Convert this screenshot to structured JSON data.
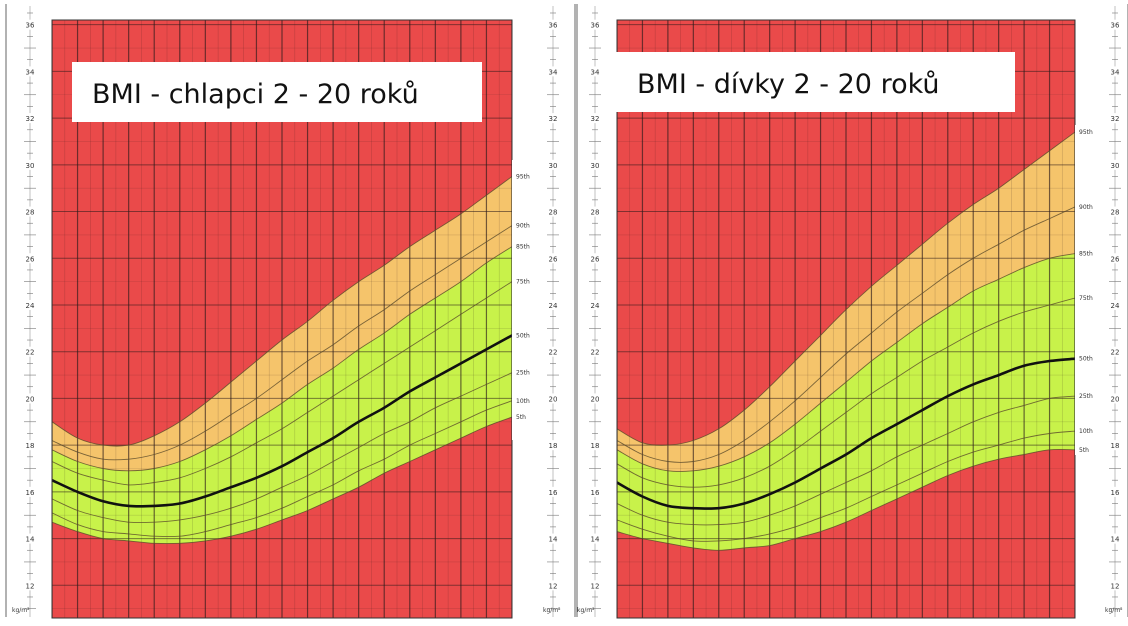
{
  "colors": {
    "red": "#ea4a4a",
    "orange": "#f5c46b",
    "green": "#c8f24a",
    "grid": "#2a1a1a",
    "median": "#111111",
    "percentile_line": "#5a4a2a"
  },
  "chart_data": [
    {
      "type": "area",
      "title": "BMI - chlapci 2 - 20 roků",
      "ylabel": "kg/m²",
      "xlim": [
        2,
        20
      ],
      "ylim": [
        10.6,
        36.2
      ],
      "y_ticks": [
        "36",
        "34",
        "32",
        "30",
        "28",
        "26",
        "24",
        "22",
        "20",
        "18",
        "16",
        "14",
        "12"
      ],
      "y_tick_values": [
        36,
        34,
        32,
        30,
        28,
        26,
        24,
        22,
        20,
        18,
        16,
        14,
        12
      ],
      "unit_label": "kg/m²",
      "x": [
        2,
        3,
        4,
        5,
        6,
        7,
        8,
        9,
        10,
        11,
        12,
        13,
        14,
        15,
        16,
        17,
        18,
        19,
        20
      ],
      "series": [
        {
          "name": "5th",
          "values": [
            14.7,
            14.3,
            14.0,
            13.9,
            13.8,
            13.8,
            13.9,
            14.1,
            14.4,
            14.8,
            15.2,
            15.7,
            16.2,
            16.8,
            17.3,
            17.8,
            18.3,
            18.8,
            19.2
          ]
        },
        {
          "name": "10th",
          "values": [
            15.1,
            14.6,
            14.3,
            14.2,
            14.1,
            14.1,
            14.3,
            14.6,
            14.9,
            15.3,
            15.8,
            16.3,
            16.9,
            17.4,
            18.0,
            18.5,
            19.0,
            19.5,
            19.9
          ]
        },
        {
          "name": "25th",
          "values": [
            15.7,
            15.2,
            14.9,
            14.7,
            14.7,
            14.8,
            15.0,
            15.3,
            15.7,
            16.2,
            16.7,
            17.3,
            17.9,
            18.5,
            19.0,
            19.6,
            20.1,
            20.6,
            21.1
          ]
        },
        {
          "name": "50th",
          "values": [
            16.5,
            16.0,
            15.6,
            15.4,
            15.4,
            15.5,
            15.8,
            16.2,
            16.6,
            17.1,
            17.7,
            18.3,
            19.0,
            19.6,
            20.3,
            20.9,
            21.5,
            22.1,
            22.7
          ]
        },
        {
          "name": "75th",
          "values": [
            17.3,
            16.8,
            16.5,
            16.3,
            16.4,
            16.6,
            17.0,
            17.5,
            18.1,
            18.7,
            19.4,
            20.1,
            20.8,
            21.5,
            22.2,
            22.9,
            23.6,
            24.3,
            25.0
          ]
        },
        {
          "name": "85th",
          "values": [
            17.8,
            17.3,
            17.0,
            16.9,
            17.0,
            17.3,
            17.8,
            18.4,
            19.1,
            19.8,
            20.6,
            21.3,
            22.1,
            22.8,
            23.6,
            24.3,
            25.0,
            25.8,
            26.5
          ]
        },
        {
          "name": "90th",
          "values": [
            18.2,
            17.7,
            17.4,
            17.4,
            17.6,
            18.0,
            18.6,
            19.3,
            20.0,
            20.8,
            21.6,
            22.3,
            23.1,
            23.8,
            24.6,
            25.3,
            26.0,
            26.7,
            27.4
          ]
        },
        {
          "name": "95th",
          "values": [
            19.0,
            18.3,
            18.0,
            18.0,
            18.4,
            19.0,
            19.8,
            20.7,
            21.6,
            22.5,
            23.3,
            24.2,
            25.0,
            25.7,
            26.5,
            27.2,
            27.9,
            28.7,
            29.5
          ]
        }
      ]
    },
    {
      "type": "area",
      "title": "BMI - dívky 2 - 20 roků",
      "ylabel": "kg/m²",
      "xlim": [
        2,
        20
      ],
      "ylim": [
        10.6,
        36.2
      ],
      "y_ticks": [
        "36",
        "34",
        "32",
        "30",
        "28",
        "26",
        "24",
        "22",
        "20",
        "18",
        "16",
        "14",
        "12"
      ],
      "y_tick_values": [
        36,
        34,
        32,
        30,
        28,
        26,
        24,
        22,
        20,
        18,
        16,
        14,
        12
      ],
      "unit_label": "kg/m²",
      "x": [
        2,
        3,
        4,
        5,
        6,
        7,
        8,
        9,
        10,
        11,
        12,
        13,
        14,
        15,
        16,
        17,
        18,
        19,
        20
      ],
      "series": [
        {
          "name": "5th",
          "values": [
            14.3,
            14.0,
            13.8,
            13.6,
            13.5,
            13.6,
            13.7,
            14.0,
            14.3,
            14.7,
            15.2,
            15.7,
            16.2,
            16.7,
            17.1,
            17.4,
            17.6,
            17.8,
            17.8
          ]
        },
        {
          "name": "10th",
          "values": [
            14.8,
            14.4,
            14.1,
            13.9,
            13.9,
            14.0,
            14.2,
            14.5,
            14.9,
            15.3,
            15.8,
            16.3,
            16.8,
            17.3,
            17.7,
            18.0,
            18.3,
            18.5,
            18.6
          ]
        },
        {
          "name": "25th",
          "values": [
            15.5,
            15.0,
            14.7,
            14.6,
            14.6,
            14.7,
            15.0,
            15.4,
            15.9,
            16.4,
            16.9,
            17.5,
            18.0,
            18.5,
            19.0,
            19.4,
            19.7,
            20.0,
            20.1
          ]
        },
        {
          "name": "50th",
          "values": [
            16.4,
            15.8,
            15.4,
            15.3,
            15.3,
            15.5,
            15.9,
            16.4,
            17.0,
            17.6,
            18.3,
            18.9,
            19.5,
            20.1,
            20.6,
            21.0,
            21.4,
            21.6,
            21.7
          ]
        },
        {
          "name": "75th",
          "values": [
            17.2,
            16.6,
            16.3,
            16.2,
            16.3,
            16.6,
            17.1,
            17.8,
            18.6,
            19.4,
            20.2,
            20.9,
            21.6,
            22.2,
            22.8,
            23.3,
            23.7,
            24.0,
            24.3
          ]
        },
        {
          "name": "85th",
          "values": [
            17.8,
            17.2,
            16.9,
            16.9,
            17.1,
            17.5,
            18.1,
            18.9,
            19.8,
            20.7,
            21.6,
            22.4,
            23.2,
            23.9,
            24.6,
            25.1,
            25.6,
            26.0,
            26.2
          ]
        },
        {
          "name": "90th",
          "values": [
            18.2,
            17.6,
            17.3,
            17.3,
            17.6,
            18.2,
            19.0,
            19.9,
            20.9,
            21.9,
            22.8,
            23.7,
            24.5,
            25.3,
            26.0,
            26.6,
            27.2,
            27.7,
            28.2
          ]
        },
        {
          "name": "95th",
          "values": [
            18.7,
            18.1,
            18.0,
            18.2,
            18.7,
            19.5,
            20.5,
            21.6,
            22.7,
            23.8,
            24.8,
            25.7,
            26.6,
            27.5,
            28.3,
            29.0,
            29.8,
            30.6,
            31.4
          ]
        }
      ]
    }
  ]
}
